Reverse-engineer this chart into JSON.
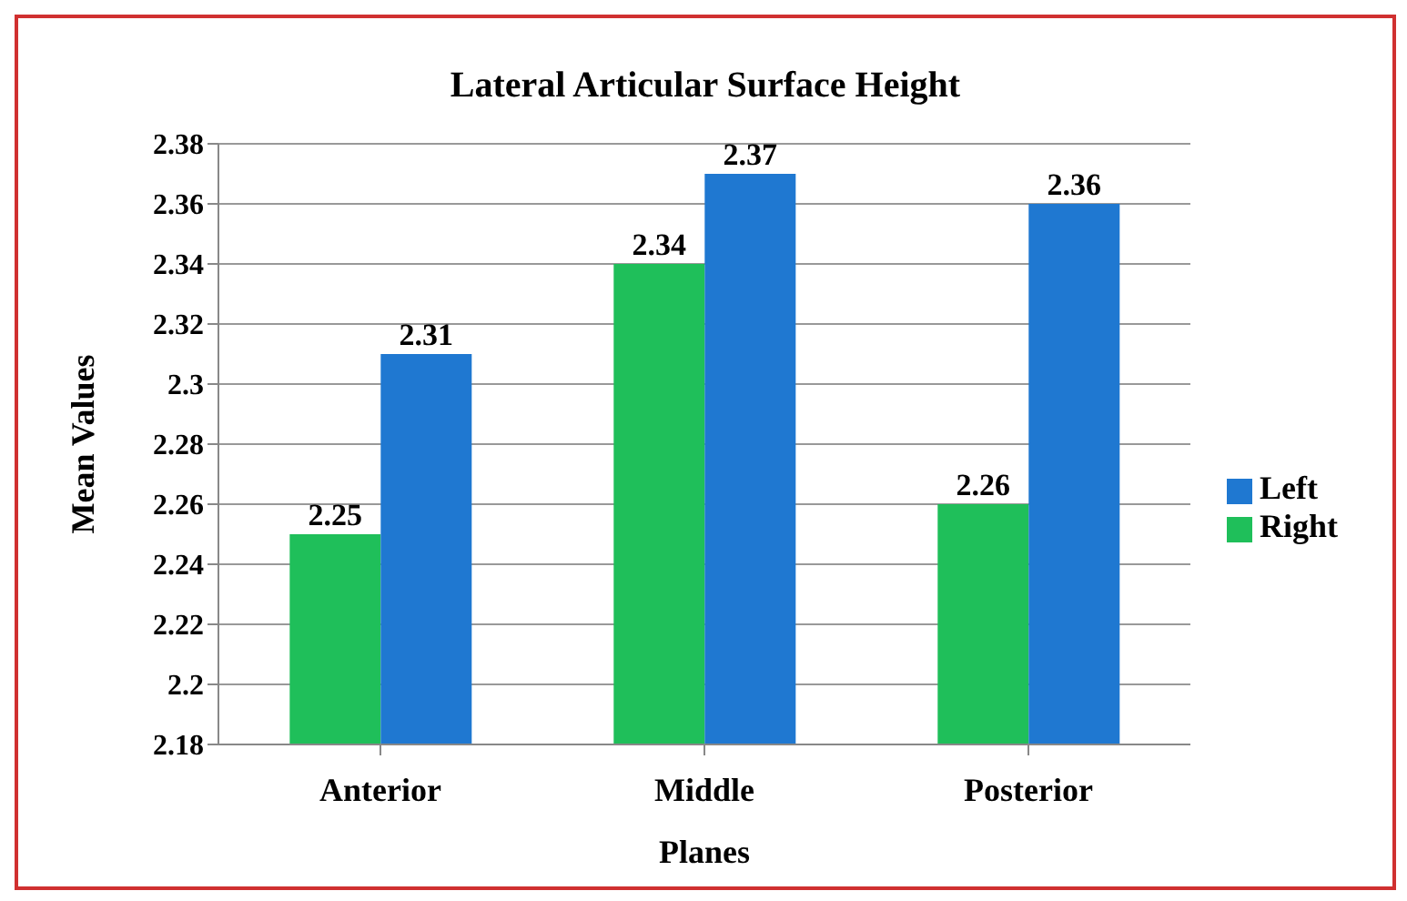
{
  "chart_data": {
    "type": "bar",
    "title": "Lateral Articular Surface Height",
    "xlabel": "Planes",
    "ylabel": "Mean Values",
    "categories": [
      "Anterior",
      "Middle",
      "Posterior"
    ],
    "series": [
      {
        "name": "Right",
        "color": "#1fbf5a",
        "values": [
          2.25,
          2.34,
          2.26
        ]
      },
      {
        "name": "Left",
        "color": "#1f78d1",
        "values": [
          2.31,
          2.37,
          2.36
        ]
      }
    ],
    "ylim": [
      2.18,
      2.38
    ],
    "yticks": [
      2.18,
      2.2,
      2.22,
      2.24,
      2.26,
      2.28,
      2.3,
      2.32,
      2.34,
      2.36,
      2.38
    ],
    "grid": "y",
    "legend": "right",
    "data_labels": true
  }
}
